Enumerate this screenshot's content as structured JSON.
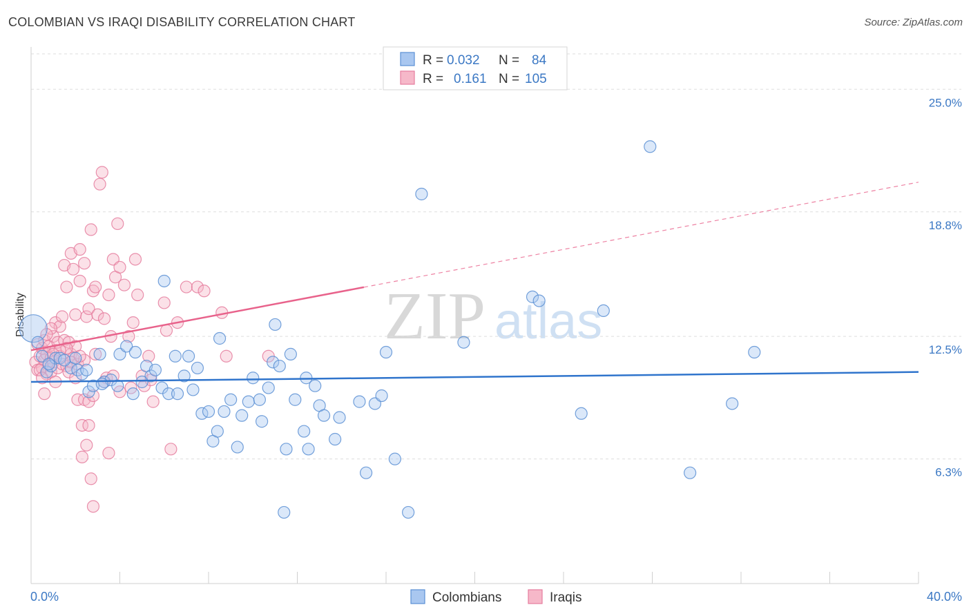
{
  "header": {
    "title": "COLOMBIAN VS IRAQI DISABILITY CORRELATION CHART",
    "source": "Source: ZipAtlas.com"
  },
  "colors": {
    "colombians_fill": "#a9c7f0",
    "colombians_stroke": "#5b8fd4",
    "colombians_line": "#2f74cc",
    "iraqis_fill": "#f6b8c9",
    "iraqis_stroke": "#e57d9e",
    "iraqis_line": "#e8628b",
    "tick_text": "#3b78c4",
    "grid": "#dddddd"
  },
  "legend": {
    "rows": [
      {
        "r_label": "R = ",
        "r_value": "0.032",
        "n_label": "N = ",
        "n_value": "84",
        "series": "colombians"
      },
      {
        "r_label": "R = ",
        "r_value": "0.161",
        "n_label": "N = ",
        "n_value": "105",
        "series": "iraqis"
      }
    ]
  },
  "watermark": {
    "zip": "ZIP",
    "atlas": "atlas"
  },
  "chart_data": {
    "type": "scatter",
    "title": "COLOMBIAN VS IRAQI DISABILITY CORRELATION CHART",
    "xlabel": "",
    "ylabel": "Disability",
    "xlim": [
      0,
      40
    ],
    "ylim": [
      0,
      27
    ],
    "x_tick_labels": [
      "0.0%",
      "40.0%"
    ],
    "y_ticks": [
      6.3,
      12.5,
      18.8,
      25.0
    ],
    "y_tick_labels": [
      "6.3%",
      "12.5%",
      "18.8%",
      "25.0%"
    ],
    "grid": true,
    "legend_position": "top-center",
    "series": [
      {
        "name": "Colombians",
        "key": "colombians",
        "trend": {
          "x0": 0,
          "y0": 10.2,
          "x1": 40,
          "y1": 10.7,
          "dashed_from": null
        },
        "points": [
          [
            0.1,
            12.9
          ],
          [
            0.5,
            11.5
          ],
          [
            0.7,
            10.7
          ],
          [
            0.9,
            11.0
          ],
          [
            1.1,
            11.4
          ],
          [
            1.3,
            11.4
          ],
          [
            1.8,
            10.9
          ],
          [
            2.1,
            10.8
          ],
          [
            2.3,
            10.6
          ],
          [
            2.5,
            10.8
          ],
          [
            2.6,
            9.7
          ],
          [
            2.8,
            10.0
          ],
          [
            3.1,
            11.6
          ],
          [
            3.3,
            10.2
          ],
          [
            3.6,
            10.3
          ],
          [
            3.9,
            10.0
          ],
          [
            4.0,
            11.6
          ],
          [
            4.3,
            12.0
          ],
          [
            4.7,
            11.7
          ],
          [
            4.6,
            9.6
          ],
          [
            5.2,
            11.0
          ],
          [
            5.4,
            10.5
          ],
          [
            5.6,
            10.8
          ],
          [
            5.9,
            9.9
          ],
          [
            6.0,
            15.3
          ],
          [
            6.2,
            9.6
          ],
          [
            6.5,
            11.5
          ],
          [
            6.6,
            9.6
          ],
          [
            6.9,
            10.5
          ],
          [
            7.1,
            11.5
          ],
          [
            7.3,
            9.8
          ],
          [
            7.5,
            10.9
          ],
          [
            7.7,
            8.6
          ],
          [
            8.0,
            8.7
          ],
          [
            8.2,
            7.2
          ],
          [
            8.4,
            7.7
          ],
          [
            8.5,
            12.4
          ],
          [
            8.7,
            8.7
          ],
          [
            9.0,
            9.3
          ],
          [
            9.3,
            6.9
          ],
          [
            9.5,
            8.5
          ],
          [
            9.8,
            9.2
          ],
          [
            10.0,
            10.4
          ],
          [
            10.3,
            9.3
          ],
          [
            10.4,
            8.2
          ],
          [
            10.7,
            9.9
          ],
          [
            10.9,
            11.2
          ],
          [
            11.0,
            13.1
          ],
          [
            11.2,
            11.0
          ],
          [
            11.4,
            3.6
          ],
          [
            11.5,
            6.8
          ],
          [
            11.7,
            11.6
          ],
          [
            11.9,
            9.3
          ],
          [
            12.3,
            7.7
          ],
          [
            12.4,
            10.4
          ],
          [
            12.5,
            6.8
          ],
          [
            12.8,
            10.0
          ],
          [
            13.0,
            9.0
          ],
          [
            13.2,
            8.5
          ],
          [
            13.7,
            7.3
          ],
          [
            13.9,
            8.4
          ],
          [
            14.8,
            9.2
          ],
          [
            15.1,
            5.6
          ],
          [
            15.5,
            9.1
          ],
          [
            15.8,
            9.5
          ],
          [
            16.0,
            11.7
          ],
          [
            16.4,
            6.3
          ],
          [
            17.0,
            3.6
          ],
          [
            17.6,
            19.7
          ],
          [
            19.5,
            12.2
          ],
          [
            22.6,
            14.5
          ],
          [
            22.9,
            14.3
          ],
          [
            24.8,
            8.6
          ],
          [
            25.8,
            13.8
          ],
          [
            27.9,
            22.1
          ],
          [
            29.7,
            5.6
          ],
          [
            31.6,
            9.1
          ],
          [
            32.6,
            11.7
          ],
          [
            0.3,
            12.2
          ],
          [
            0.8,
            11.1
          ],
          [
            1.5,
            11.3
          ],
          [
            2.0,
            11.4
          ],
          [
            3.2,
            10.1
          ],
          [
            5.0,
            10.2
          ]
        ]
      },
      {
        "name": "Iraqis",
        "key": "iraqis",
        "trend": {
          "x0": 0,
          "y0": 11.8,
          "x1": 40,
          "y1": 20.3,
          "solid_until_x": 15
        },
        "points": [
          [
            0.2,
            11.2
          ],
          [
            0.3,
            10.8
          ],
          [
            0.3,
            12.1
          ],
          [
            0.4,
            11.5
          ],
          [
            0.5,
            11.9
          ],
          [
            0.5,
            10.9
          ],
          [
            0.6,
            11.3
          ],
          [
            0.6,
            12.3
          ],
          [
            0.7,
            10.6
          ],
          [
            0.7,
            11.6
          ],
          [
            0.8,
            12.0
          ],
          [
            0.8,
            11.1
          ],
          [
            0.9,
            11.4
          ],
          [
            0.9,
            10.7
          ],
          [
            1.0,
            12.5
          ],
          [
            1.0,
            11.2
          ],
          [
            1.1,
            13.2
          ],
          [
            1.1,
            11.8
          ],
          [
            1.2,
            10.9
          ],
          [
            1.2,
            12.2
          ],
          [
            1.3,
            11.5
          ],
          [
            1.3,
            13.0
          ],
          [
            1.4,
            11.1
          ],
          [
            1.4,
            13.5
          ],
          [
            1.5,
            12.3
          ],
          [
            1.5,
            16.1
          ],
          [
            1.6,
            15.0
          ],
          [
            1.6,
            11.0
          ],
          [
            1.7,
            12.2
          ],
          [
            1.7,
            10.7
          ],
          [
            1.8,
            16.7
          ],
          [
            1.8,
            11.6
          ],
          [
            1.9,
            15.9
          ],
          [
            1.9,
            11.4
          ],
          [
            2.0,
            13.6
          ],
          [
            2.0,
            12.0
          ],
          [
            2.1,
            11.1
          ],
          [
            2.1,
            9.3
          ],
          [
            2.2,
            15.3
          ],
          [
            2.2,
            16.9
          ],
          [
            2.3,
            8.0
          ],
          [
            2.3,
            6.4
          ],
          [
            2.4,
            16.2
          ],
          [
            2.4,
            11.3
          ],
          [
            2.5,
            7.0
          ],
          [
            2.5,
            13.5
          ],
          [
            2.6,
            13.9
          ],
          [
            2.6,
            8.0
          ],
          [
            2.7,
            17.9
          ],
          [
            2.7,
            5.3
          ],
          [
            2.8,
            14.8
          ],
          [
            2.8,
            3.9
          ],
          [
            2.9,
            15.0
          ],
          [
            3.0,
            13.6
          ],
          [
            3.1,
            20.2
          ],
          [
            3.2,
            20.8
          ],
          [
            3.3,
            13.4
          ],
          [
            3.4,
            10.4
          ],
          [
            3.5,
            14.6
          ],
          [
            3.6,
            12.5
          ],
          [
            3.7,
            16.4
          ],
          [
            3.8,
            15.5
          ],
          [
            3.9,
            18.2
          ],
          [
            4.0,
            16.0
          ],
          [
            4.2,
            15.1
          ],
          [
            4.4,
            12.5
          ],
          [
            4.6,
            13.2
          ],
          [
            4.7,
            16.4
          ],
          [
            4.8,
            14.6
          ],
          [
            5.0,
            10.5
          ],
          [
            5.1,
            10.0
          ],
          [
            5.3,
            11.5
          ],
          [
            5.5,
            9.2
          ],
          [
            6.0,
            14.2
          ],
          [
            6.3,
            6.8
          ],
          [
            6.6,
            13.2
          ],
          [
            7.0,
            15.0
          ],
          [
            7.5,
            15.0
          ],
          [
            7.8,
            14.8
          ],
          [
            8.6,
            13.7
          ],
          [
            8.8,
            11.5
          ],
          [
            10.7,
            11.5
          ],
          [
            0.4,
            10.8
          ],
          [
            0.6,
            9.6
          ],
          [
            0.9,
            12.9
          ],
          [
            1.1,
            10.2
          ],
          [
            1.6,
            11.9
          ],
          [
            1.8,
            11.2
          ],
          [
            2.0,
            10.4
          ],
          [
            2.2,
            11.5
          ],
          [
            2.4,
            9.3
          ],
          [
            2.6,
            9.2
          ],
          [
            2.9,
            11.6
          ],
          [
            3.3,
            10.2
          ],
          [
            3.5,
            6.6
          ],
          [
            3.7,
            10.5
          ],
          [
            4.0,
            9.7
          ],
          [
            4.5,
            9.9
          ],
          [
            5.4,
            10.3
          ],
          [
            6.1,
            12.8
          ],
          [
            1.3,
            11.8
          ],
          [
            0.5,
            10.4
          ],
          [
            0.7,
            12.6
          ],
          [
            1.0,
            11.6
          ],
          [
            2.8,
            9.5
          ]
        ]
      }
    ]
  },
  "bottom_legend": {
    "colombians_label": "Colombians",
    "iraqis_label": "Iraqis"
  }
}
